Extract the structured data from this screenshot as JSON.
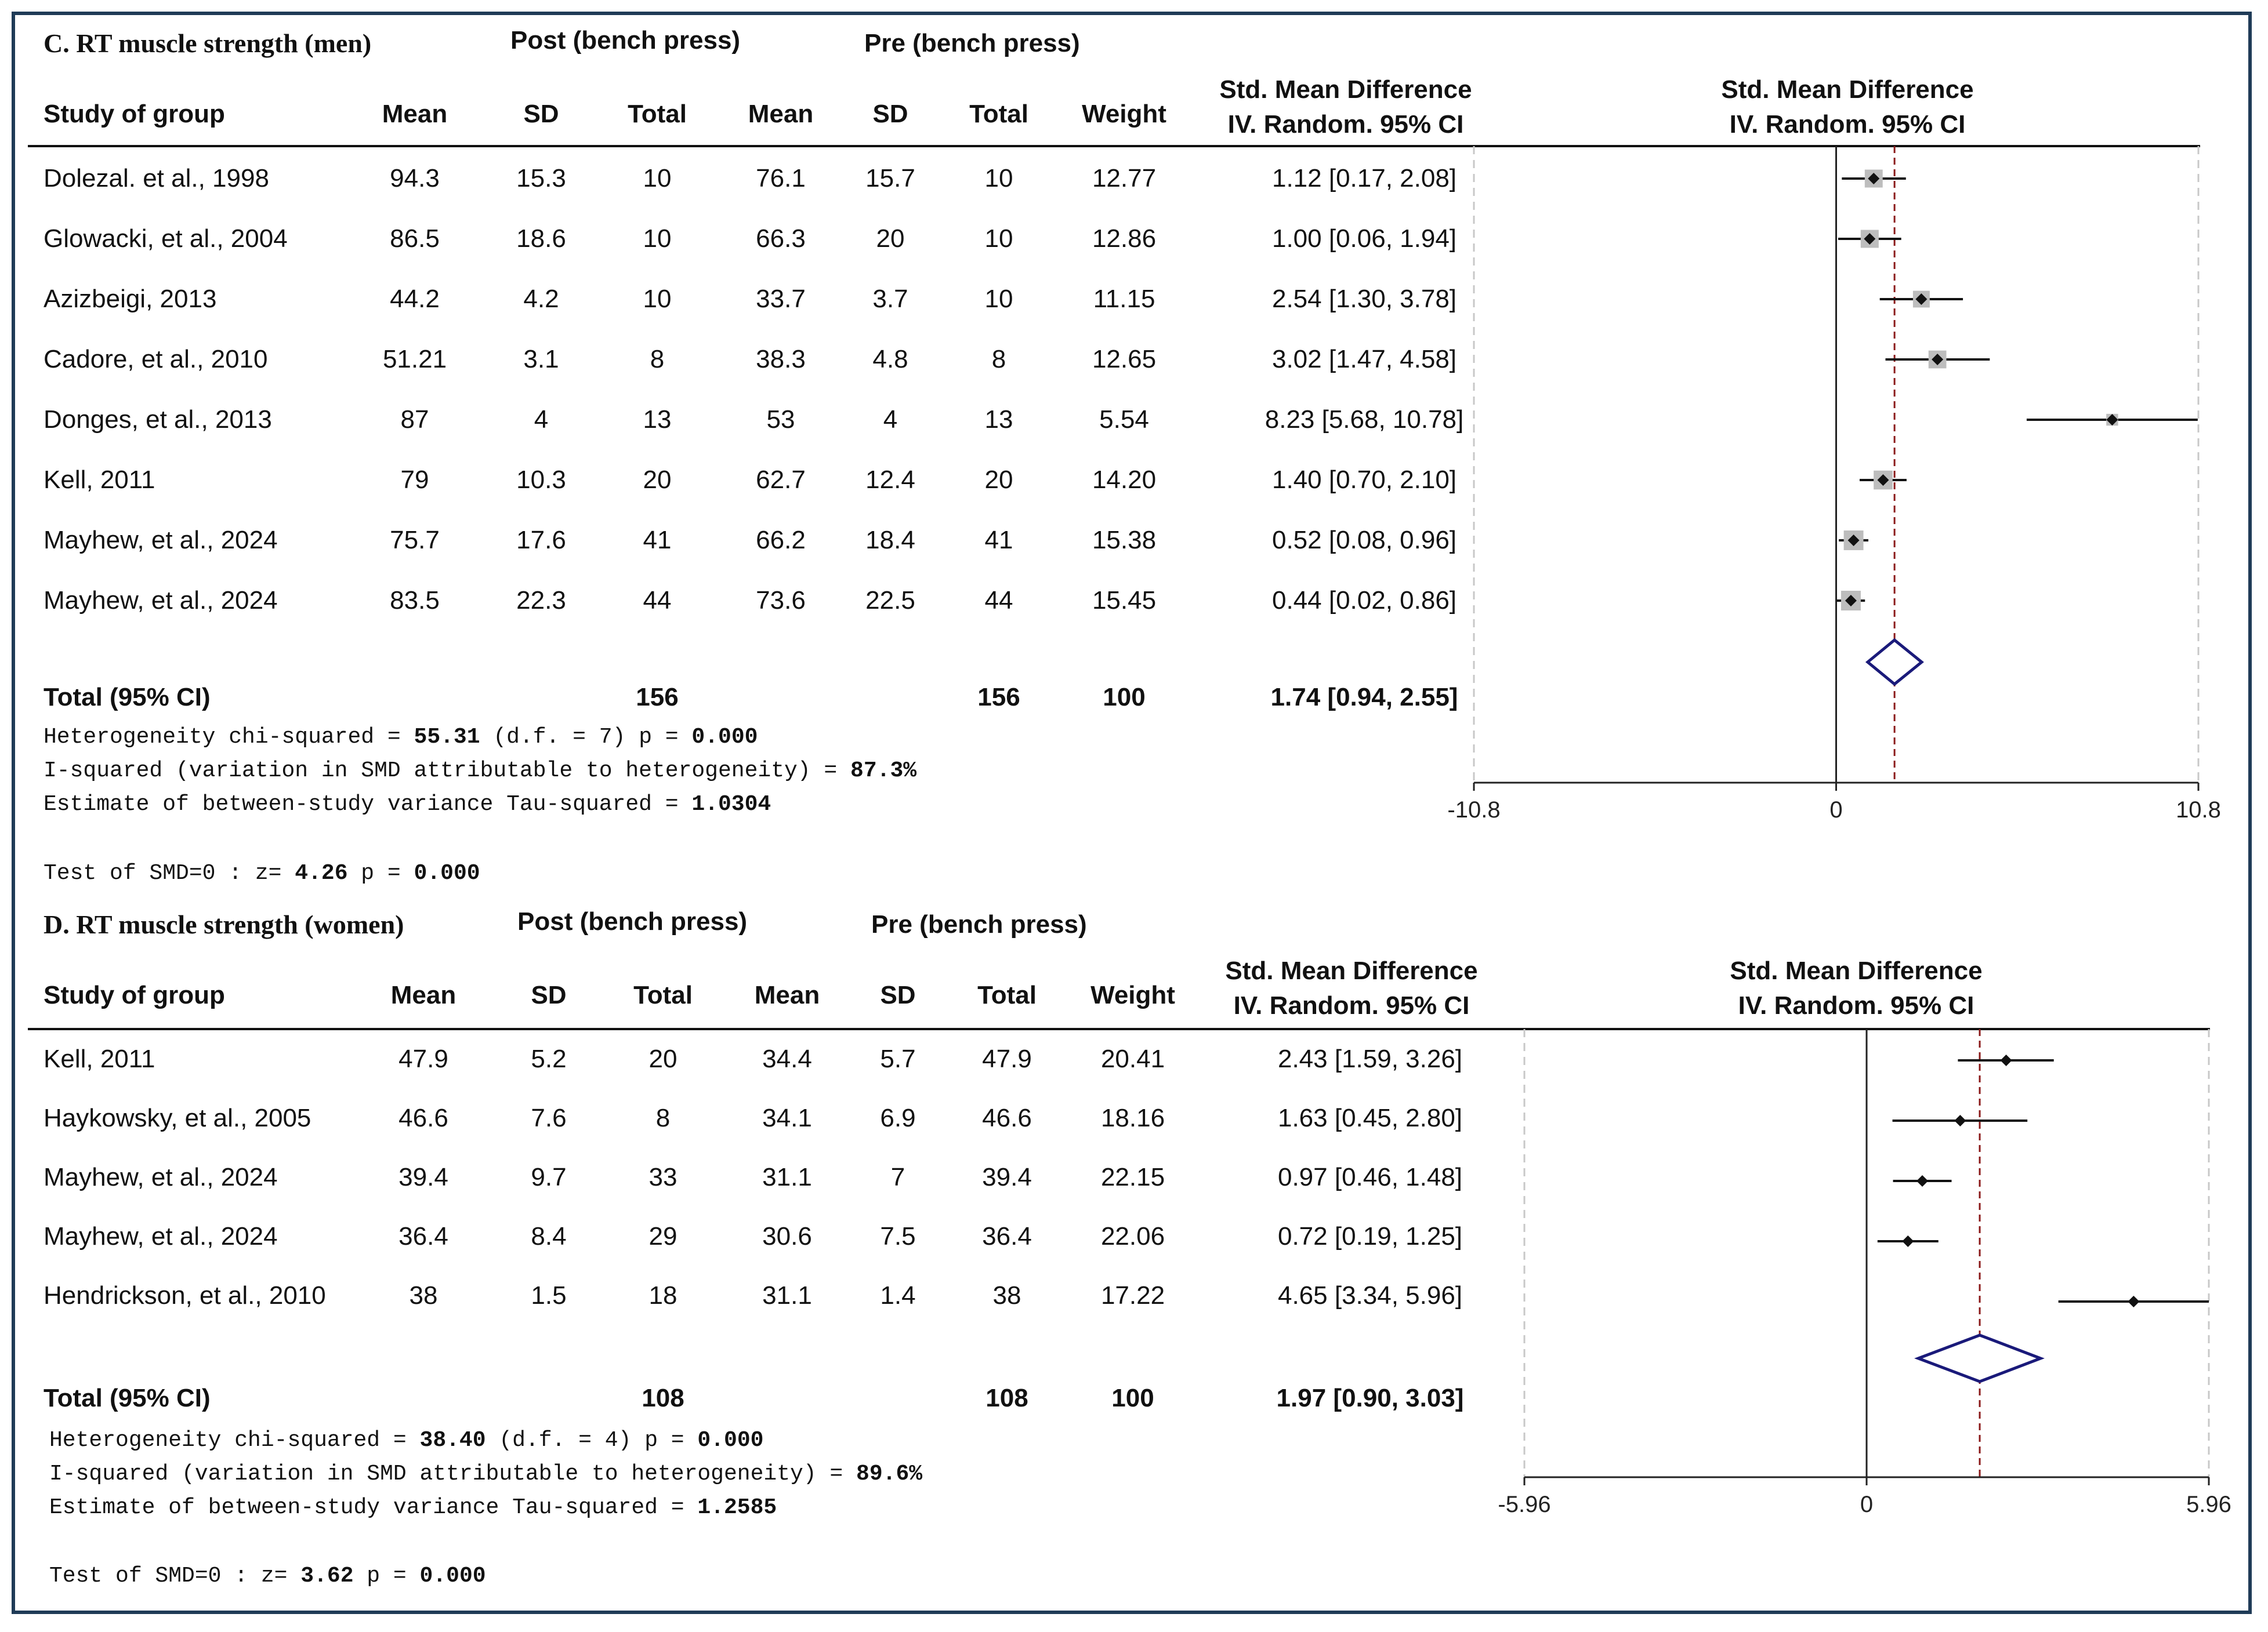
{
  "colors": {
    "frame": "#1f3b57",
    "diamond": "#1a1a7a",
    "overall_line": "#8b1a1a",
    "square": "#bdbdbd",
    "grid": "#c8c8c8"
  },
  "panels": [
    {
      "title": "C.  RT muscle strength (men)",
      "post_label": "Post (bench press)",
      "pre_label": "Pre (bench press)",
      "headers": {
        "study": "Study of group",
        "mean": "Mean",
        "sd": "SD",
        "total": "Total",
        "weight": "Weight",
        "smd_line1": "Std. Mean Difference",
        "smd_line2": "IV. Random. 95% CI"
      },
      "rows": [
        {
          "study": "Dolezal. et al., 1998",
          "post_mean": "94.3",
          "post_sd": "15.3",
          "post_total": "10",
          "pre_mean": "76.1",
          "pre_sd": "15.7",
          "pre_total": "10",
          "weight": "12.77",
          "ci_text": "1.12 [0.17, 2.08]"
        },
        {
          "study": "Glowacki, et al., 2004",
          "post_mean": "86.5",
          "post_sd": "18.6",
          "post_total": "10",
          "pre_mean": "66.3",
          "pre_sd": "20",
          "pre_total": "10",
          "weight": "12.86",
          "ci_text": "1.00 [0.06, 1.94]"
        },
        {
          "study": "Azizbeigi, 2013",
          "post_mean": "44.2",
          "post_sd": "4.2",
          "post_total": "10",
          "pre_mean": "33.7",
          "pre_sd": "3.7",
          "pre_total": "10",
          "weight": "11.15",
          "ci_text": "2.54 [1.30, 3.78]"
        },
        {
          "study": "Cadore, et al., 2010",
          "post_mean": "51.21",
          "post_sd": "3.1",
          "post_total": "8",
          "pre_mean": "38.3",
          "pre_sd": "4.8",
          "pre_total": "8",
          "weight": "12.65",
          "ci_text": "3.02 [1.47, 4.58]"
        },
        {
          "study": "Donges, et al., 2013",
          "post_mean": "87",
          "post_sd": "4",
          "post_total": "13",
          "pre_mean": "53",
          "pre_sd": "4",
          "pre_total": "13",
          "weight": "5.54",
          "ci_text": "8.23 [5.68, 10.78]"
        },
        {
          "study": "Kell, 2011",
          "post_mean": "79",
          "post_sd": "10.3",
          "post_total": "20",
          "pre_mean": "62.7",
          "pre_sd": "12.4",
          "pre_total": "20",
          "weight": "14.20",
          "ci_text": "1.40 [0.70, 2.10]"
        },
        {
          "study": "Mayhew, et al., 2024",
          "post_mean": "75.7",
          "post_sd": "17.6",
          "post_total": "41",
          "pre_mean": "66.2",
          "pre_sd": "18.4",
          "pre_total": "41",
          "weight": "15.38",
          "ci_text": "0.52 [0.08, 0.96]"
        },
        {
          "study": "Mayhew, et al., 2024",
          "post_mean": "83.5",
          "post_sd": "22.3",
          "post_total": "44",
          "pre_mean": "73.6",
          "pre_sd": "22.5",
          "pre_total": "44",
          "weight": "15.45",
          "ci_text": "0.44 [0.02,  0.86]"
        }
      ],
      "total": {
        "label": "Total (95% CI)",
        "post_total": "156",
        "pre_total": "156",
        "weight": "100",
        "ci_text": "1.74 [0.94, 2.55]"
      },
      "stats": {
        "het_label": "Heterogeneity chi-squared =  ",
        "het_value": "55.31",
        "het_rest": " (d.f. = 7) p = ",
        "het_p": "0.000",
        "i2_label": "I-squared (variation in SMD attributable to heterogeneity) =  ",
        "i2_value": "87.3%",
        "tau_label": "Estimate of between-study variance Tau-squared =  ",
        "tau_value": "1.0304",
        "test_label": "Test of SMD=0 : z=   ",
        "test_z": "4.26",
        "test_rest": " p = ",
        "test_p": "0.000"
      }
    },
    {
      "title": "D.  RT muscle strength (women)",
      "post_label": "Post (bench press)",
      "pre_label": "Pre (bench press)",
      "headers": {
        "study": "Study of group",
        "mean": "Mean",
        "sd": "SD",
        "total": "Total",
        "weight": "Weight",
        "smd_line1": "Std. Mean Difference",
        "smd_line2": "IV. Random. 95% CI"
      },
      "rows": [
        {
          "study": "Kell, 2011",
          "post_mean": "47.9",
          "post_sd": "5.2",
          "post_total": "20",
          "pre_mean": "34.4",
          "pre_sd": "5.7",
          "pre_total": "47.9",
          "weight": "20.41",
          "ci_text": "2.43 [1.59, 3.26]"
        },
        {
          "study": "Haykowsky, et al., 2005",
          "post_mean": "46.6",
          "post_sd": "7.6",
          "post_total": "8",
          "pre_mean": "34.1",
          "pre_sd": "6.9",
          "pre_total": "46.6",
          "weight": "18.16",
          "ci_text": "1.63 [0.45, 2.80]"
        },
        {
          "study": "Mayhew, et al., 2024",
          "post_mean": "39.4",
          "post_sd": "9.7",
          "post_total": "33",
          "pre_mean": "31.1",
          "pre_sd": "7",
          "pre_total": "39.4",
          "weight": "22.15",
          "ci_text": "0.97 [0.46, 1.48]"
        },
        {
          "study": "Mayhew, et al., 2024",
          "post_mean": "36.4",
          "post_sd": "8.4",
          "post_total": "29",
          "pre_mean": "30.6",
          "pre_sd": "7.5",
          "pre_total": "36.4",
          "weight": "22.06",
          "ci_text": "0.72 [0.19, 1.25]"
        },
        {
          "study": "Hendrickson, et al., 2010",
          "post_mean": "38",
          "post_sd": "1.5",
          "post_total": "18",
          "pre_mean": "31.1",
          "pre_sd": "1.4",
          "pre_total": "38",
          "weight": "17.22",
          "ci_text": "4.65 [3.34, 5.96]"
        }
      ],
      "total": {
        "label": "Total (95% CI)",
        "post_total": "108",
        "pre_total": "108",
        "weight": "100",
        "ci_text": "1.97 [0.90, 3.03]"
      },
      "stats": {
        "het_label": "Heterogeneity chi-squared =  ",
        "het_value": "38.40",
        "het_rest": " (d.f. = 4) p = ",
        "het_p": "0.000",
        "i2_label": "I-squared (variation in SMD attributable to heterogeneity) =  ",
        "i2_value": "89.6%",
        "tau_label": "Estimate of between-study variance Tau-squared =  ",
        "tau_value": "1.2585",
        "test_label": "Test of SMD=0 : z=   ",
        "test_z": "3.62",
        "test_rest": " p = ",
        "test_p": "0.000"
      }
    }
  ],
  "chart_data": [
    {
      "type": "forest",
      "title": "C.  RT muscle strength (men)",
      "xlabel": "Std. Mean Difference IV. Random. 95% CI",
      "xlim": [
        -10.8,
        10.8
      ],
      "ticks": [
        -10.8,
        0,
        10.8
      ],
      "tick_labels": [
        "-10.8",
        "0",
        "10.8"
      ],
      "studies": [
        {
          "smd": 1.12,
          "lo": 0.17,
          "hi": 2.08,
          "weight": 12.77
        },
        {
          "smd": 1.0,
          "lo": 0.06,
          "hi": 1.94,
          "weight": 12.86
        },
        {
          "smd": 2.54,
          "lo": 1.3,
          "hi": 3.78,
          "weight": 11.15
        },
        {
          "smd": 3.02,
          "lo": 1.47,
          "hi": 4.58,
          "weight": 12.65
        },
        {
          "smd": 8.23,
          "lo": 5.68,
          "hi": 10.78,
          "weight": 5.54
        },
        {
          "smd": 1.4,
          "lo": 0.7,
          "hi": 2.1,
          "weight": 14.2
        },
        {
          "smd": 0.52,
          "lo": 0.08,
          "hi": 0.96,
          "weight": 15.38
        },
        {
          "smd": 0.44,
          "lo": 0.02,
          "hi": 0.86,
          "weight": 15.45
        }
      ],
      "overall": {
        "smd": 1.74,
        "lo": 0.94,
        "hi": 2.55
      }
    },
    {
      "type": "forest",
      "title": "D.  RT muscle strength (women)",
      "xlabel": "Std. Mean Difference IV. Random. 95% CI",
      "xlim": [
        -5.96,
        5.96
      ],
      "ticks": [
        -5.96,
        0,
        5.96
      ],
      "tick_labels": [
        "-5.96",
        "0",
        "5.96"
      ],
      "studies": [
        {
          "smd": 2.43,
          "lo": 1.59,
          "hi": 3.26,
          "weight": 20.41
        },
        {
          "smd": 1.63,
          "lo": 0.45,
          "hi": 2.8,
          "weight": 18.16
        },
        {
          "smd": 0.97,
          "lo": 0.46,
          "hi": 1.48,
          "weight": 22.15
        },
        {
          "smd": 0.72,
          "lo": 0.19,
          "hi": 1.25,
          "weight": 22.06
        },
        {
          "smd": 4.65,
          "lo": 3.34,
          "hi": 5.96,
          "weight": 17.22
        }
      ],
      "overall": {
        "smd": 1.97,
        "lo": 0.9,
        "hi": 3.03
      }
    }
  ]
}
